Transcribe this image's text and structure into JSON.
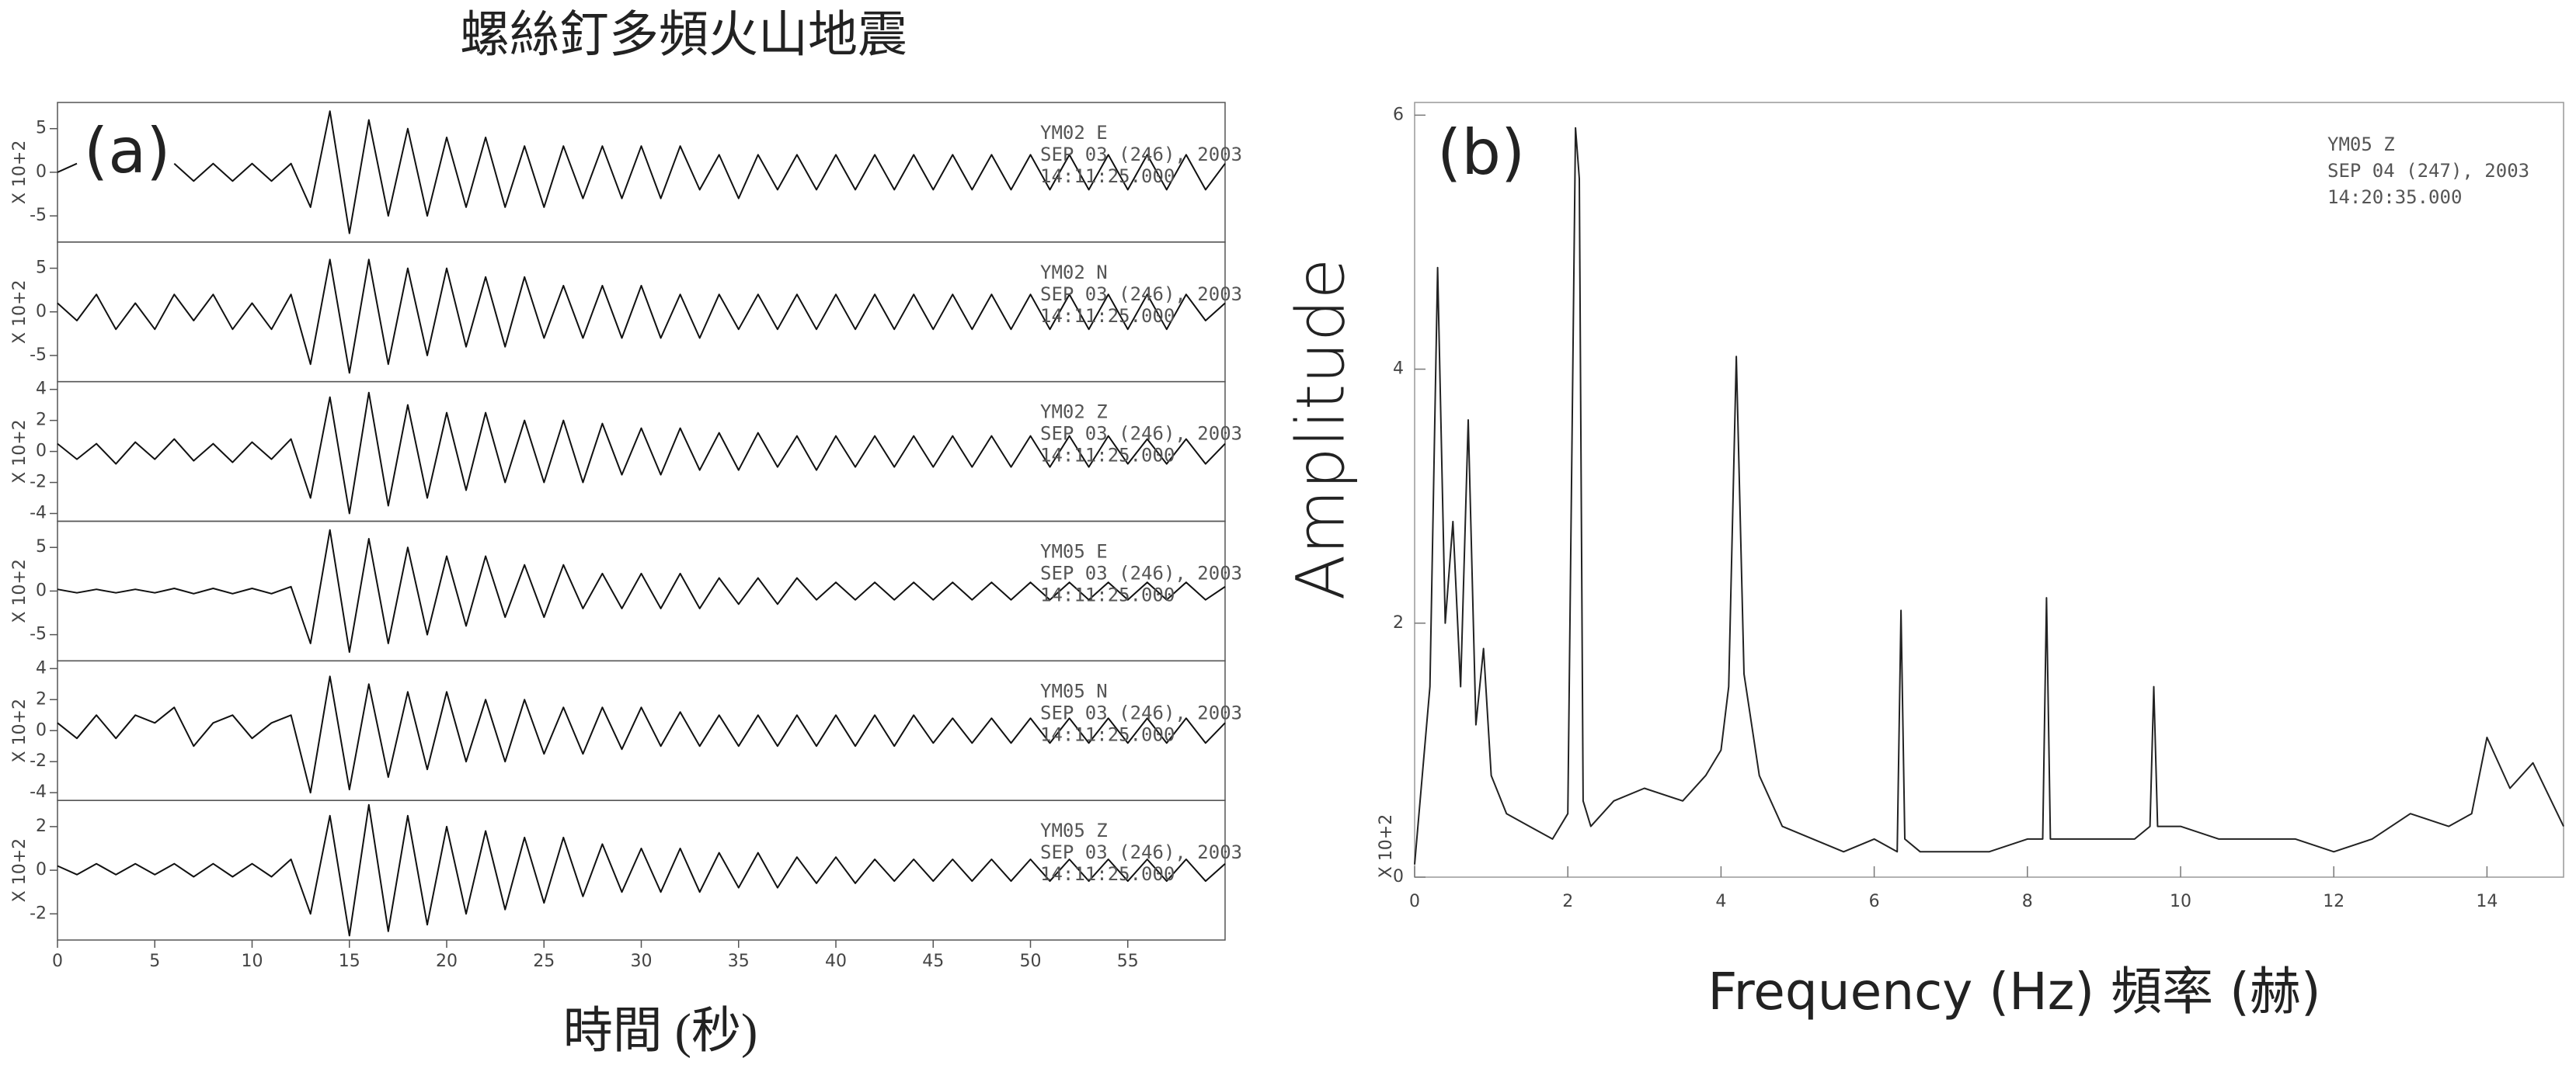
{
  "chart_data": [
    {
      "type": "line",
      "title": "螺絲釘多頻火山地震",
      "panel_label": "(a)",
      "x_label": "時間 (秒)",
      "xlim": [
        0,
        60
      ],
      "xticks": [
        0,
        5,
        10,
        15,
        20,
        25,
        30,
        35,
        40,
        45,
        50,
        55
      ],
      "color": "#111111",
      "x": [
        0,
        1,
        2,
        3,
        4,
        5,
        6,
        7,
        8,
        9,
        10,
        11,
        12,
        13,
        14,
        15,
        16,
        17,
        18,
        19,
        20,
        21,
        22,
        23,
        24,
        25,
        26,
        27,
        28,
        29,
        30,
        31,
        32,
        33,
        34,
        35,
        36,
        37,
        38,
        39,
        40,
        41,
        42,
        43,
        44,
        45,
        46,
        47,
        48,
        49,
        50,
        51,
        52,
        53,
        54,
        55,
        56,
        57,
        58,
        59,
        60
      ],
      "traces": [
        {
          "annotation": [
            "YM02   E",
            "SEP 03 (246), 2003",
            "14:11:25.000"
          ],
          "y_unit_label": "X 10+2",
          "ylim": [
            -8,
            8
          ],
          "yticks": [
            -5,
            0,
            5
          ],
          "values": [
            0,
            1,
            null,
            null,
            null,
            null,
            1,
            -1,
            1,
            -1,
            1,
            -1,
            1,
            -4,
            7,
            -7,
            6,
            -5,
            5,
            -5,
            4,
            -4,
            4,
            -4,
            3,
            -4,
            3,
            -3,
            3,
            -3,
            3,
            -3,
            3,
            -2,
            2,
            -3,
            2,
            -2,
            2,
            -2,
            2,
            -2,
            2,
            -2,
            2,
            -2,
            2,
            -2,
            2,
            -2,
            2,
            -2,
            2,
            -2,
            2,
            -2,
            2,
            -2,
            2,
            -2,
            1
          ]
        },
        {
          "annotation": [
            "YM02   N",
            "SEP 03 (246), 2003",
            "14:11:25.000"
          ],
          "y_unit_label": "X 10+2",
          "ylim": [
            -8,
            8
          ],
          "yticks": [
            -5,
            0,
            5
          ],
          "values": [
            1,
            -1,
            2,
            -2,
            1,
            -2,
            2,
            -1,
            2,
            -2,
            1,
            -2,
            2,
            -6,
            6,
            -7,
            6,
            -6,
            5,
            -5,
            5,
            -4,
            4,
            -4,
            4,
            -3,
            3,
            -3,
            3,
            -3,
            3,
            -3,
            2,
            -3,
            2,
            -2,
            2,
            -2,
            2,
            -2,
            2,
            -2,
            2,
            -2,
            2,
            -2,
            2,
            -2,
            2,
            -2,
            2,
            -2,
            2,
            -2,
            2,
            -2,
            2,
            -2,
            2,
            -1,
            1
          ]
        },
        {
          "annotation": [
            "YM02   Z",
            "SEP 03 (246), 2003",
            "14:11:25.000"
          ],
          "y_unit_label": "X 10+2",
          "ylim": [
            -4.5,
            4.5
          ],
          "yticks": [
            -4,
            -2,
            0,
            2,
            4
          ],
          "values": [
            0.5,
            -0.5,
            0.5,
            -0.8,
            0.6,
            -0.5,
            0.8,
            -0.6,
            0.5,
            -0.7,
            0.6,
            -0.5,
            0.8,
            -3,
            3.5,
            -4,
            3.8,
            -3.5,
            3,
            -3,
            2.5,
            -2.5,
            2.5,
            -2,
            2,
            -2,
            2,
            -2,
            1.8,
            -1.5,
            1.5,
            -1.5,
            1.5,
            -1.2,
            1.2,
            -1.2,
            1.2,
            -1,
            1,
            -1.2,
            1,
            -1,
            1,
            -1,
            1,
            -1,
            1,
            -1,
            1,
            -1,
            1,
            -1,
            1,
            -1,
            1,
            -0.8,
            0.8,
            -0.8,
            0.8,
            -0.8,
            0.5
          ]
        },
        {
          "annotation": [
            "YM05   E",
            "SEP 03 (246), 2003",
            "14:11:25.000"
          ],
          "y_unit_label": "X 10+2",
          "ylim": [
            -8,
            8
          ],
          "yticks": [
            -5,
            0,
            5
          ],
          "values": [
            0.2,
            -0.2,
            0.2,
            -0.2,
            0.2,
            -0.2,
            0.3,
            -0.3,
            0.3,
            -0.3,
            0.3,
            -0.3,
            0.5,
            -6,
            7,
            -7,
            6,
            -6,
            5,
            -5,
            4,
            -4,
            4,
            -3,
            3,
            -3,
            3,
            -2,
            2,
            -2,
            2,
            -2,
            2,
            -2,
            1.5,
            -1.5,
            1.5,
            -1.5,
            1.5,
            -1,
            1,
            -1,
            1,
            -1,
            1,
            -1,
            1,
            -1,
            1,
            -1,
            1,
            -1,
            1,
            -1,
            1,
            -1,
            1,
            -1,
            1,
            -1,
            0.5
          ]
        },
        {
          "annotation": [
            "YM05   N",
            "SEP 03 (246), 2003",
            "14:11:25.000"
          ],
          "y_unit_label": "X 10+2",
          "ylim": [
            -4.5,
            4.5
          ],
          "yticks": [
            -4,
            -2,
            0,
            2,
            4
          ],
          "values": [
            0.5,
            -0.5,
            1,
            -0.5,
            1,
            0.5,
            1.5,
            -1,
            0.5,
            1,
            -0.5,
            0.5,
            1,
            -4,
            3.5,
            -3.8,
            3,
            -3,
            2.5,
            -2.5,
            2.5,
            -2,
            2,
            -2,
            2,
            -1.5,
            1.5,
            -1.5,
            1.5,
            -1.2,
            1.5,
            -1,
            1.2,
            -1,
            1,
            -1,
            1,
            -1,
            1,
            -1,
            1,
            -1,
            1,
            -1,
            1,
            -0.8,
            0.8,
            -0.8,
            0.8,
            -0.8,
            0.8,
            -0.8,
            0.8,
            -0.8,
            0.8,
            -0.8,
            0.8,
            -0.8,
            0.8,
            -0.8,
            0.5
          ]
        },
        {
          "annotation": [
            "YM05   Z",
            "SEP 03 (246), 2003",
            "14:11:25.000"
          ],
          "y_unit_label": "X 10+2",
          "ylim": [
            -3.2,
            3.2
          ],
          "yticks": [
            -2,
            0,
            2
          ],
          "values": [
            0.2,
            -0.2,
            0.3,
            -0.2,
            0.3,
            -0.2,
            0.3,
            -0.3,
            0.3,
            -0.3,
            0.3,
            -0.3,
            0.5,
            -2,
            2.5,
            -3,
            3,
            -2.8,
            2.5,
            -2.5,
            2,
            -2,
            1.8,
            -1.8,
            1.5,
            -1.5,
            1.5,
            -1.2,
            1.2,
            -1,
            1,
            -1,
            1,
            -1,
            0.8,
            -0.8,
            0.8,
            -0.8,
            0.6,
            -0.6,
            0.6,
            -0.6,
            0.5,
            -0.5,
            0.5,
            -0.5,
            0.5,
            -0.5,
            0.5,
            -0.5,
            0.5,
            -0.5,
            0.5,
            -0.5,
            0.5,
            -0.5,
            0.5,
            -0.5,
            0.5,
            -0.5,
            0.3
          ]
        }
      ]
    },
    {
      "type": "line",
      "panel_label": "(b)",
      "x_label": "Frequency (Hz) 頻率 (赫)",
      "y_label": "Amplitude",
      "y_unit_label": "X 10+2",
      "annotation": [
        "YM05   Z",
        "SEP 04 (247), 2003",
        "14:20:35.000"
      ],
      "color": "#222222",
      "xlim": [
        0,
        15
      ],
      "xticks": [
        0,
        2,
        4,
        6,
        8,
        10,
        12,
        14
      ],
      "ylim": [
        0,
        6.1
      ],
      "yticks": [
        0,
        2,
        4,
        6
      ],
      "x": [
        0,
        0.2,
        0.3,
        0.4,
        0.5,
        0.6,
        0.7,
        0.8,
        0.9,
        1.0,
        1.2,
        1.5,
        1.8,
        2.0,
        2.1,
        2.15,
        2.2,
        2.3,
        2.6,
        3.0,
        3.5,
        3.8,
        4.0,
        4.1,
        4.2,
        4.3,
        4.5,
        4.8,
        5.2,
        5.6,
        6.0,
        6.3,
        6.35,
        6.4,
        6.6,
        7.0,
        7.5,
        8.0,
        8.2,
        8.25,
        8.3,
        8.6,
        9.0,
        9.4,
        9.6,
        9.65,
        9.7,
        10.0,
        10.5,
        11.0,
        11.5,
        12.0,
        12.5,
        13.0,
        13.5,
        13.8,
        14.0,
        14.3,
        14.6,
        15.0
      ],
      "values": [
        0.1,
        1.5,
        4.8,
        2.0,
        2.8,
        1.5,
        3.6,
        1.2,
        1.8,
        0.8,
        0.5,
        0.4,
        0.3,
        0.5,
        5.9,
        5.5,
        0.6,
        0.4,
        0.6,
        0.7,
        0.6,
        0.8,
        1.0,
        1.5,
        4.1,
        1.6,
        0.8,
        0.4,
        0.3,
        0.2,
        0.3,
        0.2,
        2.1,
        0.3,
        0.2,
        0.2,
        0.2,
        0.3,
        0.3,
        2.2,
        0.3,
        0.3,
        0.3,
        0.3,
        0.4,
        1.5,
        0.4,
        0.4,
        0.3,
        0.3,
        0.3,
        0.2,
        0.3,
        0.5,
        0.4,
        0.5,
        1.1,
        0.7,
        0.9,
        0.4
      ]
    }
  ]
}
